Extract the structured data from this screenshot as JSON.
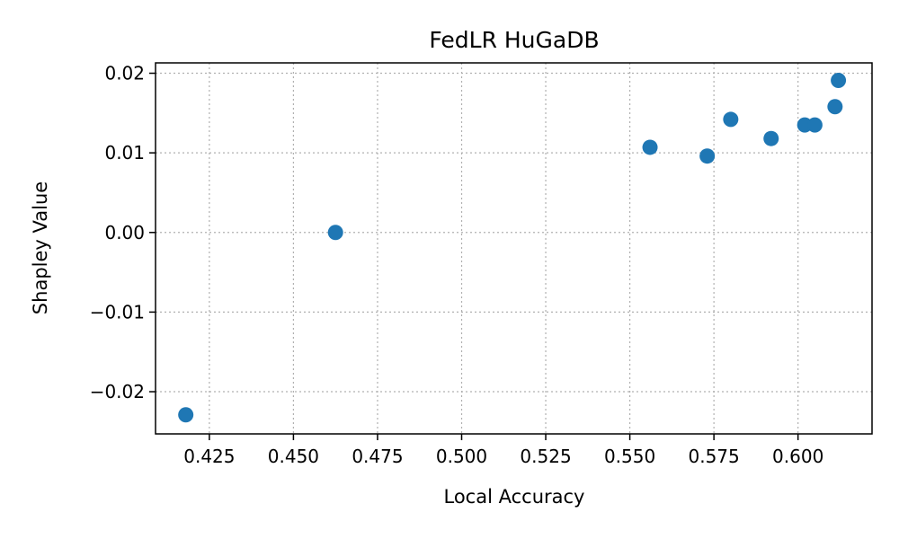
{
  "chart_data": {
    "type": "scatter",
    "title": "FedLR HuGaDB",
    "xlabel": "Local Accuracy",
    "ylabel": "Shapley Value",
    "xlim": [
      0.409,
      0.622
    ],
    "ylim": [
      -0.0253,
      0.0213
    ],
    "xticks": [
      0.425,
      0.45,
      0.475,
      0.5,
      0.525,
      0.55,
      0.575,
      0.6
    ],
    "xtick_labels": [
      "0.425",
      "0.450",
      "0.475",
      "0.500",
      "0.525",
      "0.550",
      "0.575",
      "0.600"
    ],
    "yticks": [
      -0.02,
      -0.01,
      0.0,
      0.01,
      0.02
    ],
    "ytick_labels": [
      "−0.02",
      "−0.01",
      "0.00",
      "0.01",
      "0.02"
    ],
    "grid": true,
    "color": "#1f77b4",
    "points": [
      {
        "x": 0.418,
        "y": -0.0229
      },
      {
        "x": 0.4625,
        "y": 0.0
      },
      {
        "x": 0.556,
        "y": 0.0107
      },
      {
        "x": 0.573,
        "y": 0.0096
      },
      {
        "x": 0.58,
        "y": 0.0142
      },
      {
        "x": 0.592,
        "y": 0.0118
      },
      {
        "x": 0.602,
        "y": 0.0135
      },
      {
        "x": 0.605,
        "y": 0.0135
      },
      {
        "x": 0.611,
        "y": 0.0158
      },
      {
        "x": 0.612,
        "y": 0.0191
      }
    ]
  }
}
